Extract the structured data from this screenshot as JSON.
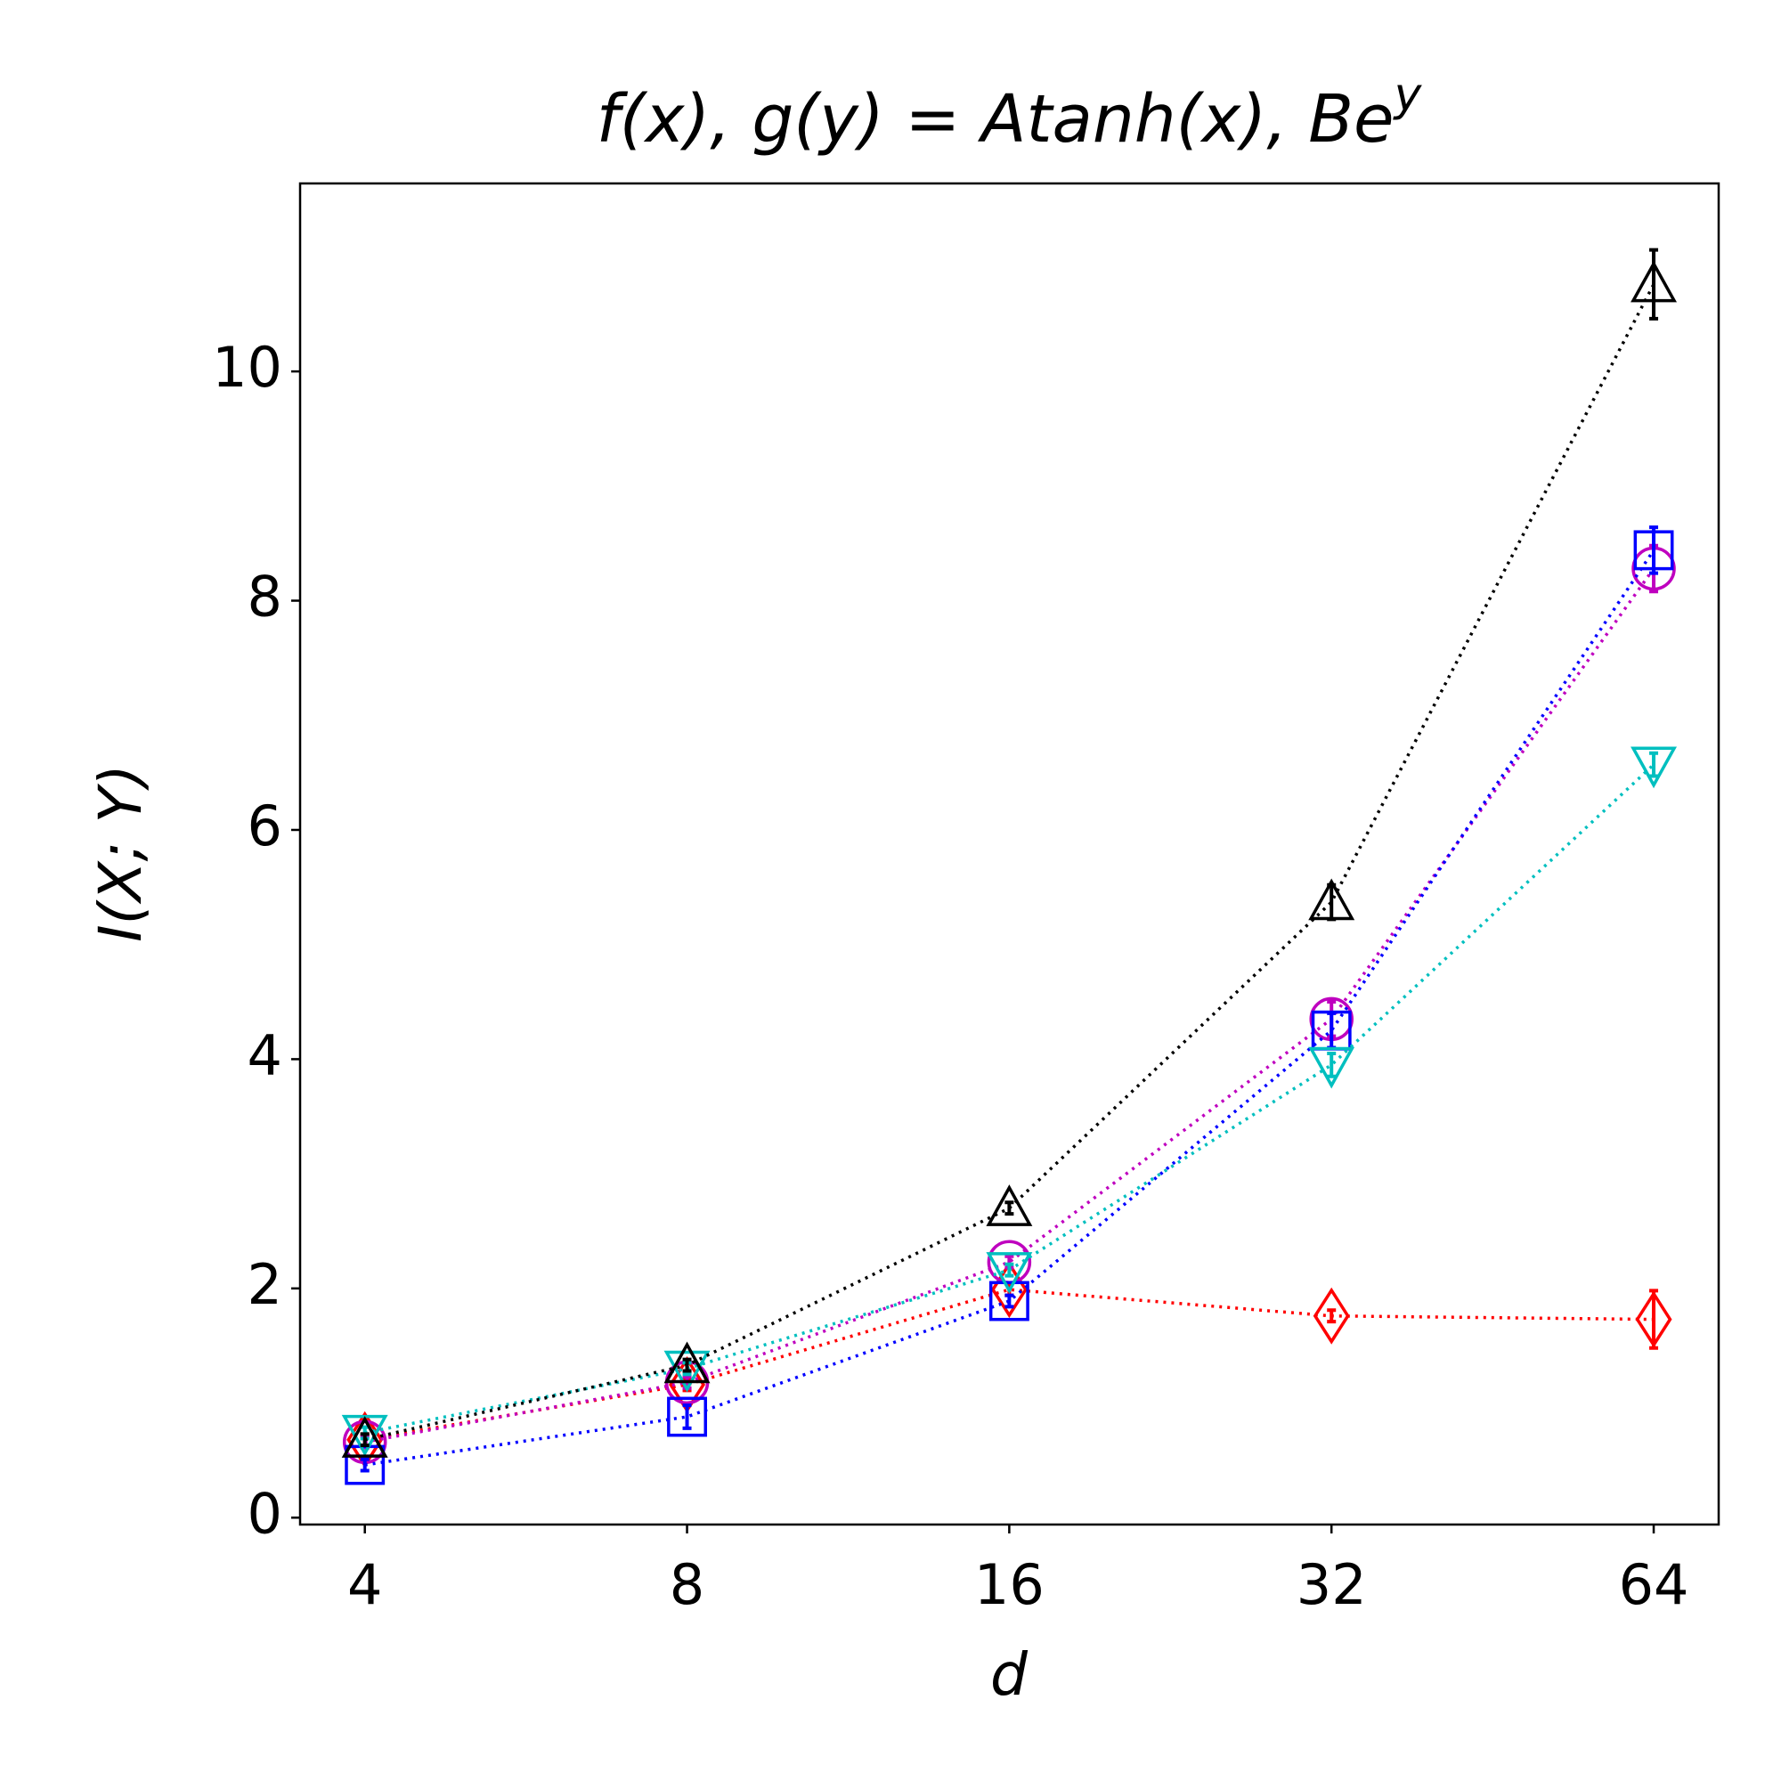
{
  "chart_data": {
    "type": "line",
    "title": "f(x), g(y) = Atanh(x), Be",
    "title_superscript": "y",
    "x_label": "d",
    "y_label": "I(X; Y)",
    "x": [
      4,
      8,
      16,
      32,
      64
    ],
    "xscale": "log",
    "xlim": [
      3.48,
      73.6
    ],
    "xticks": [
      4,
      8,
      16,
      32,
      64
    ],
    "ylim": [
      -0.06,
      11.64
    ],
    "yticks": [
      0,
      2,
      4,
      6,
      8,
      10
    ],
    "grid": false,
    "series": [
      {
        "color": "#ff0000",
        "marker": "diamond",
        "values": [
          0.68,
          1.16,
          1.99,
          1.76,
          1.73
        ],
        "errors": [
          0.05,
          0.05,
          0.05,
          0.05,
          0.25
        ]
      },
      {
        "color": "#bf00bf",
        "marker": "circle",
        "values": [
          0.66,
          1.18,
          2.23,
          4.35,
          8.28
        ],
        "errors": [
          0.05,
          0.05,
          0.05,
          0.15,
          0.2
        ]
      },
      {
        "color": "#0000ff",
        "marker": "square",
        "values": [
          0.46,
          0.88,
          1.89,
          4.25,
          8.44
        ],
        "errors": [
          0.05,
          0.1,
          0.05,
          0.15,
          0.2
        ]
      },
      {
        "color": "#00bfbf",
        "marker": "triangle_down",
        "values": [
          0.74,
          1.3,
          2.16,
          3.95,
          6.57
        ],
        "errors": [
          0.05,
          0.05,
          0.05,
          0.1,
          0.1
        ]
      },
      {
        "color": "#000000",
        "marker": "triangle_up",
        "values": [
          0.68,
          1.33,
          2.7,
          5.37,
          10.76
        ],
        "errors": [
          0.05,
          0.05,
          0.05,
          0.15,
          0.3
        ]
      }
    ]
  }
}
